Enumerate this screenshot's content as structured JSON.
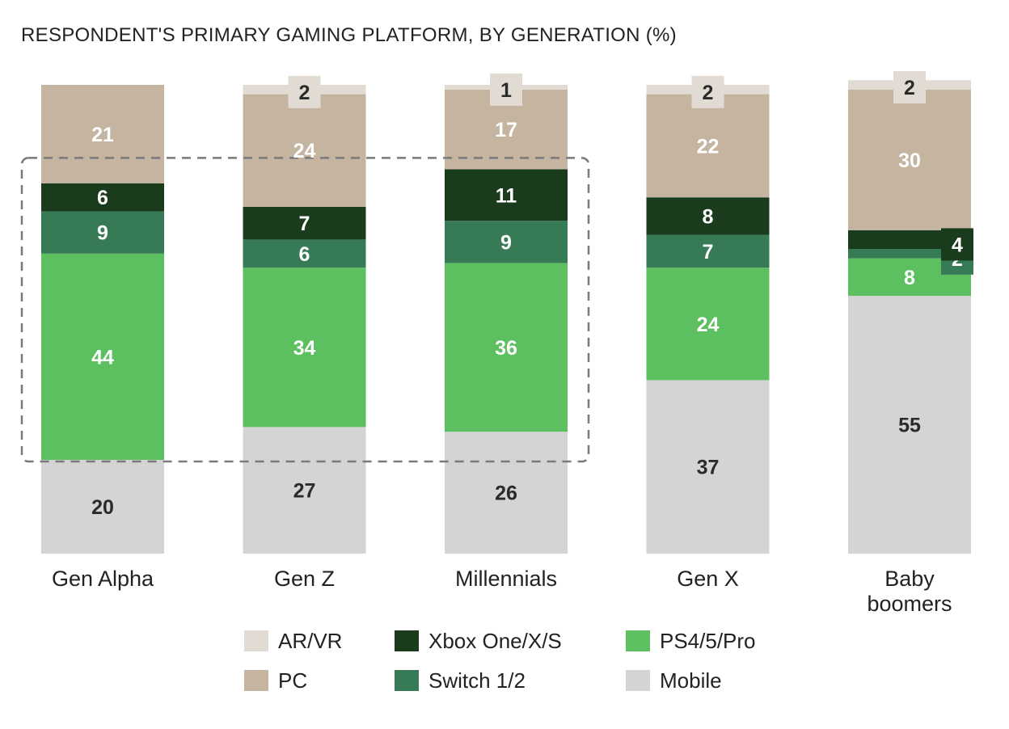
{
  "chart_data": {
    "type": "bar",
    "stacked": true,
    "title": "RESPONDENT'S PRIMARY GAMING PLATFORM, BY GENERATION (%)",
    "categories": [
      "Gen Alpha",
      "Gen Z",
      "Millennials",
      "Gen X",
      "Baby boomers"
    ],
    "category_lines": [
      [
        "Gen Alpha"
      ],
      [
        "Gen Z"
      ],
      [
        "Millennials"
      ],
      [
        "Gen X"
      ],
      [
        "Baby",
        "boomers"
      ]
    ],
    "series": [
      {
        "name": "Mobile",
        "color": "#d4d4d4",
        "label_color": "#2a2a2a",
        "values": [
          20,
          27,
          26,
          37,
          55
        ]
      },
      {
        "name": "PS4/5/Pro",
        "color": "#5cbf60",
        "label_color": "#ffffff",
        "values": [
          44,
          34,
          36,
          24,
          8
        ]
      },
      {
        "name": "Switch 1/2",
        "color": "#367a56",
        "label_color": "#ffffff",
        "values": [
          9,
          6,
          9,
          7,
          2
        ]
      },
      {
        "name": "Xbox One/X/S",
        "color": "#1b3b1d",
        "label_color": "#ffffff",
        "values": [
          6,
          7,
          11,
          8,
          4
        ]
      },
      {
        "name": "PC",
        "color": "#c4b4a0",
        "label_color": "#ffffff",
        "values": [
          21,
          24,
          17,
          22,
          30
        ]
      },
      {
        "name": "AR/VR",
        "color": "#e2dbd3",
        "label_color": "#2a2a2a",
        "values": [
          0,
          2,
          1,
          2,
          2
        ]
      }
    ],
    "legend": {
      "placement": "bottom",
      "order": [
        "AR/VR",
        "Xbox One/X/S",
        "PS4/5/Pro",
        "PC",
        "Switch 1/2",
        "Mobile"
      ]
    },
    "highlight": {
      "style": "dashed box",
      "covers": [
        "Gen Alpha",
        "Gen Z",
        "Millennials"
      ],
      "series": [
        "Xbox One/X/S",
        "Switch 1/2",
        "PS4/5/Pro"
      ]
    },
    "ylim": [
      0,
      100
    ],
    "xlabel": "",
    "ylabel": ""
  }
}
